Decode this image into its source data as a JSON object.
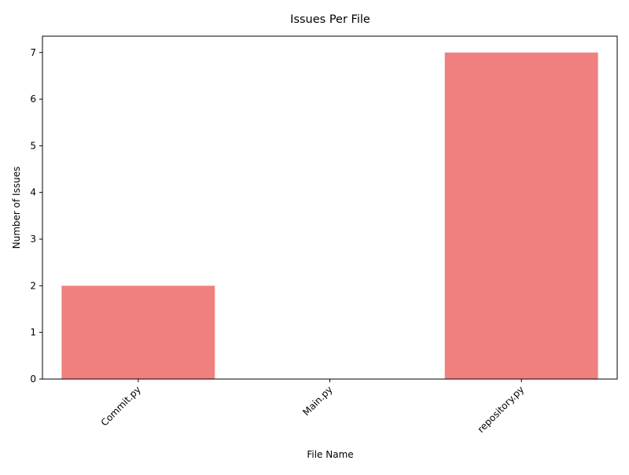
{
  "chart_data": {
    "type": "bar",
    "title": "Issues Per File",
    "xlabel": "File Name",
    "ylabel": "Number of Issues",
    "categories": [
      "Commit.py",
      "Main.py",
      "repository.py"
    ],
    "values": [
      2,
      0,
      7
    ],
    "ylim": [
      0,
      7.35
    ],
    "yticks": [
      0,
      1,
      2,
      3,
      4,
      5,
      6,
      7
    ],
    "bar_color": "#f08080",
    "grid": false,
    "legend": "none"
  }
}
